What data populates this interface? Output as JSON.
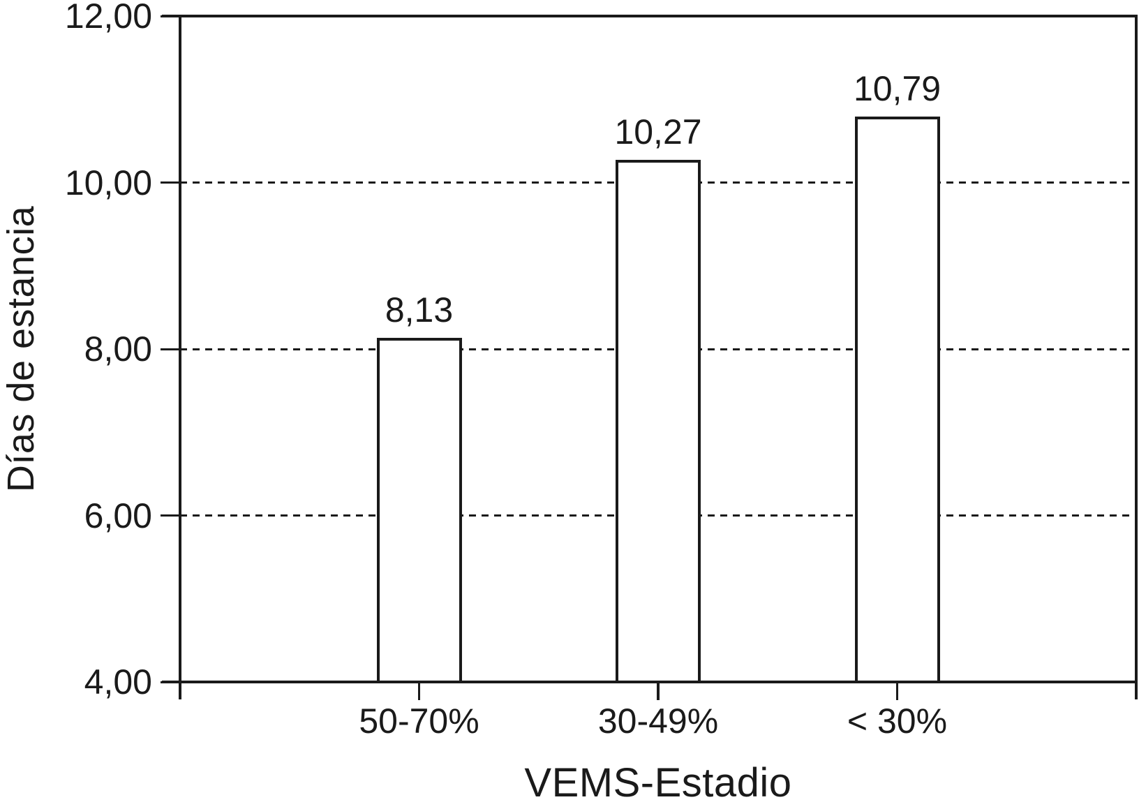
{
  "chart_data": {
    "type": "bar",
    "title": "",
    "xlabel": "VEMS-Estadio",
    "ylabel": "Días de estancia",
    "categories": [
      "50-70%",
      "30-49%",
      "< 30%"
    ],
    "values": [
      8.13,
      10.27,
      10.79
    ],
    "value_labels": [
      "8,13",
      "10,27",
      "10,79"
    ],
    "ylim": [
      4,
      12
    ],
    "y_ticks": [
      4,
      6,
      8,
      10,
      12
    ],
    "y_tick_labels": [
      "4,00",
      "6,00",
      "8,00",
      "10,00",
      "12,00"
    ],
    "gridlines_at": [
      6,
      8,
      10
    ],
    "grid_style": "dashed",
    "legend_position": "none",
    "colors": {
      "line": "#1a1a1a",
      "bar_fill": "#ffffff",
      "background": "#ffffff"
    }
  }
}
